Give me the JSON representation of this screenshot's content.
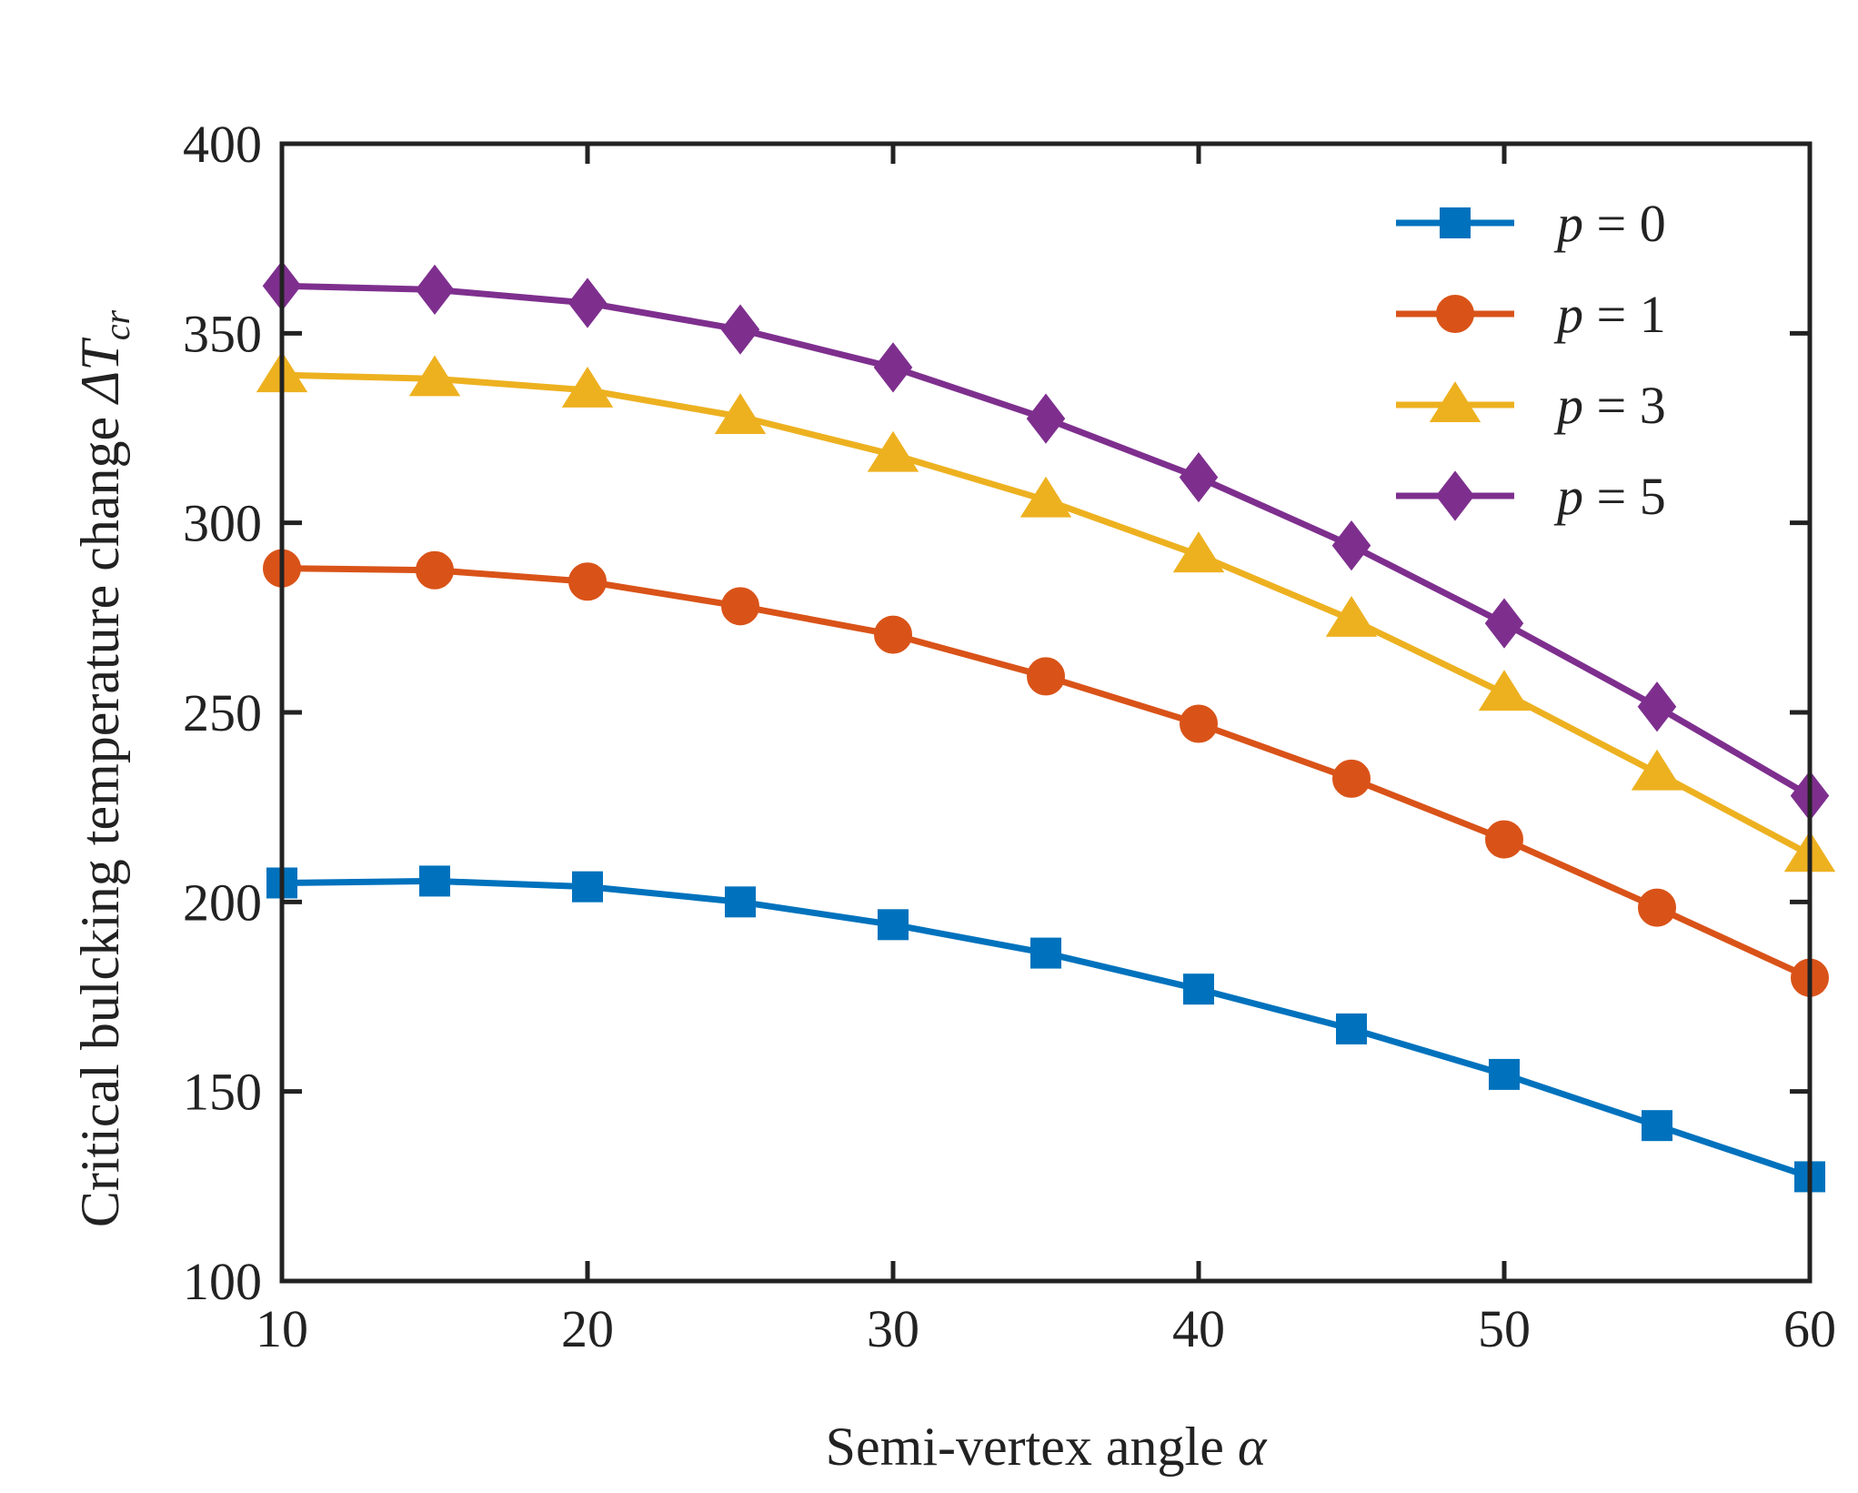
{
  "chart_data": {
    "type": "line",
    "title": "",
    "xlabel": "Semi-vertex angle α",
    "xlabel_parts": {
      "text": "Semi-vertex angle ",
      "symbol": "α"
    },
    "ylabel": "Critical bulcking temperature change ΔT_cr",
    "ylabel_parts": {
      "text": "Critical bulcking temperature change ",
      "symbol": "ΔT",
      "subscript": "cr"
    },
    "xlim": [
      10,
      60
    ],
    "ylim": [
      100,
      400
    ],
    "xticks": [
      10,
      20,
      30,
      40,
      50,
      60
    ],
    "yticks": [
      100,
      150,
      200,
      250,
      300,
      350,
      400
    ],
    "x": [
      10,
      15,
      20,
      25,
      30,
      35,
      40,
      45,
      50,
      55,
      60
    ],
    "legend_position": "top-right",
    "series": [
      {
        "name": "p = 0",
        "label_var": "p",
        "label_val": "= 0",
        "marker": "square",
        "color": "#0072BD",
        "values": [
          205,
          205.5,
          204,
          200,
          194,
          186.5,
          177,
          166.5,
          154.5,
          141,
          127.5
        ]
      },
      {
        "name": "p = 1",
        "label_var": "p",
        "label_val": "= 1",
        "marker": "circle",
        "color": "#D95319",
        "values": [
          288,
          287.5,
          284.5,
          278,
          270.5,
          259.5,
          247,
          232.5,
          216.5,
          198.5,
          180
        ]
      },
      {
        "name": "p = 3",
        "label_var": "p",
        "label_val": "= 3",
        "marker": "triangle",
        "color": "#EDB120",
        "values": [
          339,
          338,
          335,
          328,
          318,
          306,
          291.5,
          274.5,
          255,
          234,
          212.5
        ]
      },
      {
        "name": "p = 5",
        "label_var": "p",
        "label_val": "= 5",
        "marker": "diamond",
        "color": "#7E2F8E",
        "values": [
          362.5,
          361.5,
          358,
          351,
          341,
          327.5,
          312,
          294,
          273.5,
          251.5,
          228
        ]
      }
    ]
  }
}
